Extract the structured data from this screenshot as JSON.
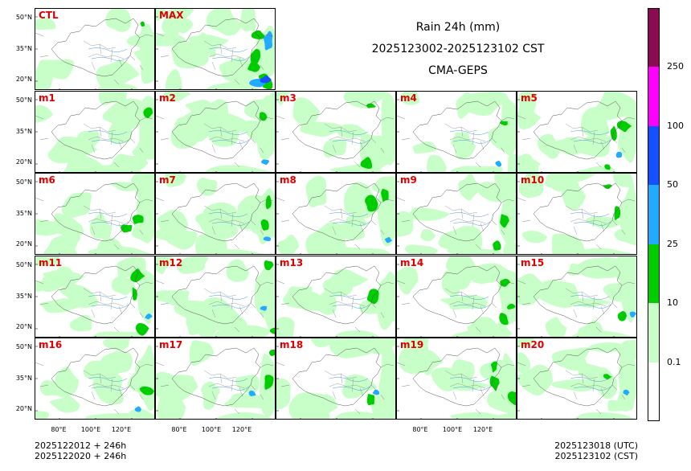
{
  "title": {
    "line1": "Rain 24h (mm)",
    "line2": "2025123002-2025123102 CST",
    "line3": "CMA-GEPS"
  },
  "panels": [
    "CTL",
    "MAX",
    "m1",
    "m2",
    "m3",
    "m4",
    "m5",
    "m6",
    "m7",
    "m8",
    "m9",
    "m10",
    "m11",
    "m12",
    "m13",
    "m14",
    "m15",
    "m16",
    "m17",
    "m18",
    "m19",
    "m20"
  ],
  "lat_labels": [
    "50°N",
    "35°N",
    "20°N"
  ],
  "lon_labels": [
    "80°E",
    "100°E",
    "120°E"
  ],
  "footer": {
    "left1": "2025122012 + 246h",
    "left2": "2025122020 + 246h",
    "right1": "2025123018 (UTC)",
    "right2": "2025123102 (CST)"
  },
  "colorbar": {
    "labels": [
      "0.1",
      "10",
      "25",
      "50",
      "100",
      "250"
    ],
    "colors": [
      "#ffffff",
      "#c8ffc8",
      "#00cd00",
      "#22aaff",
      "#1450ff",
      "#ff00ff",
      "#8b0a50"
    ]
  }
}
